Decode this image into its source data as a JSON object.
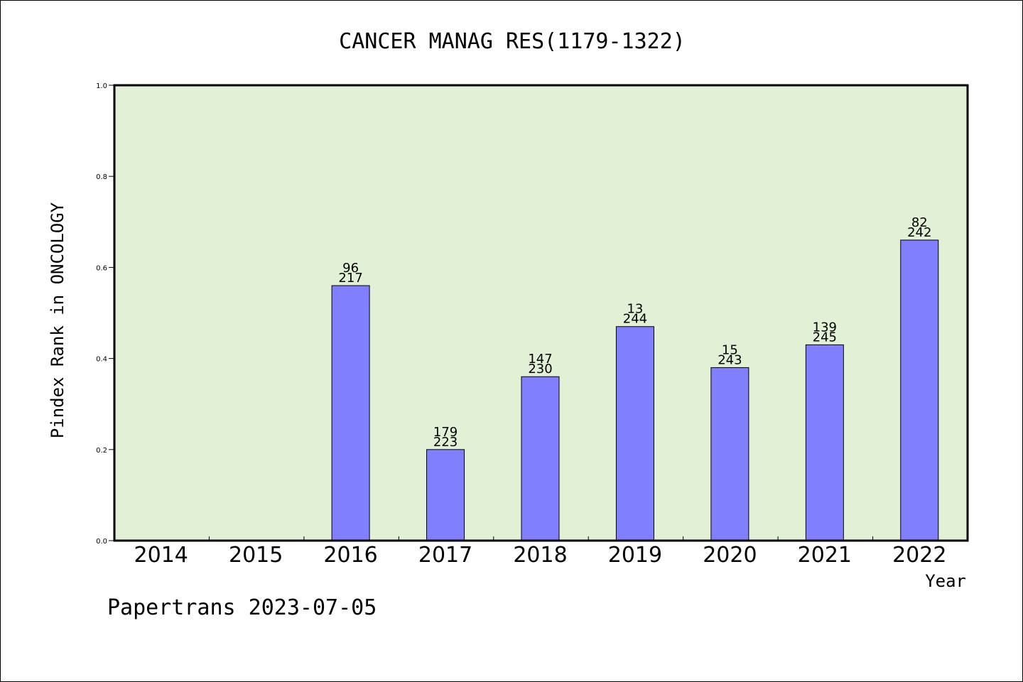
{
  "chart_data": {
    "type": "bar",
    "title": "CANCER MANAG RES(1179-1322)",
    "xlabel": "Year",
    "ylabel": "Pindex Rank in ONCOLOGY",
    "ylim": [
      0,
      1.0
    ],
    "yticks": [
      "0.0",
      "0.2",
      "0.4",
      "0.6",
      "0.8",
      "1.0"
    ],
    "categories": [
      "2014",
      "2015",
      "2016",
      "2017",
      "2018",
      "2019",
      "2020",
      "2021",
      "2022"
    ],
    "values": [
      null,
      null,
      0.56,
      0.2,
      0.36,
      0.47,
      0.38,
      0.43,
      0.66
    ],
    "labels_top": [
      "",
      "",
      "96",
      "179",
      "147",
      "13",
      "15",
      "139",
      "82"
    ],
    "labels_bottom": [
      "",
      "",
      "217",
      "223",
      "230",
      "244",
      "243",
      "245",
      "242"
    ],
    "grid": false,
    "colors": {
      "plot_background": "#e2f0d6",
      "bar": "#8080ff",
      "bar_edge": "#000000"
    }
  },
  "footer": {
    "credit": "Papertrans 2023-07-05"
  }
}
